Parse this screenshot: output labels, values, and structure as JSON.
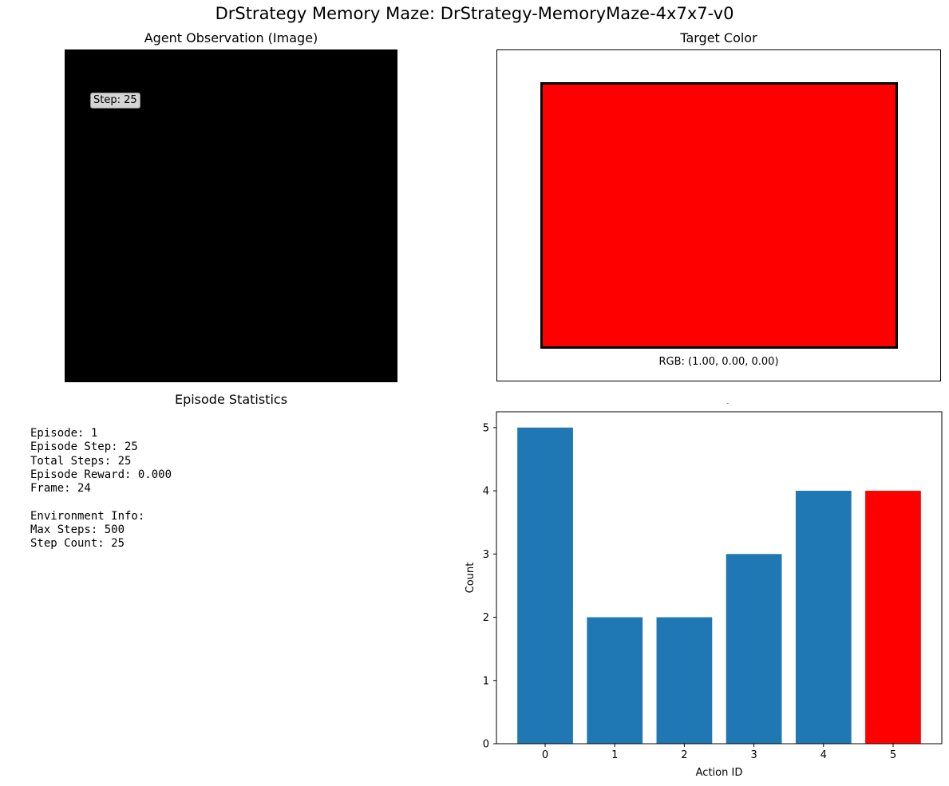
{
  "figure": {
    "suptitle": "DrStrategy Memory Maze: DrStrategy-MemoryMaze-4x7x7-v0"
  },
  "observation": {
    "title": "Agent Observation (Image)",
    "step_label": "Step: 25",
    "background_color": "#000000"
  },
  "target": {
    "title": "Target Color",
    "rgb_label": "RGB: (1.00, 0.00, 0.00)",
    "color": "#ff0000"
  },
  "stats": {
    "title": "Episode Statistics",
    "lines": [
      "Episode: 1",
      "Episode Step: 25",
      "Total Steps: 25",
      "Episode Reward: 0.000",
      "Frame: 24",
      "",
      "Environment Info:",
      "Max Steps: 500",
      "Step Count: 25"
    ]
  },
  "chart_data": {
    "type": "bar",
    "title": "Action History (Last 20)",
    "xlabel": "Action ID",
    "ylabel": "Count",
    "categories": [
      "0",
      "1",
      "2",
      "3",
      "4",
      "5"
    ],
    "values": [
      5,
      2,
      2,
      3,
      4,
      4
    ],
    "colors": [
      "#1f77b4",
      "#1f77b4",
      "#1f77b4",
      "#1f77b4",
      "#1f77b4",
      "#ff0000"
    ],
    "highlighted_category": "5",
    "yticks": [
      0,
      1,
      2,
      3,
      4,
      5
    ],
    "ylim": [
      0,
      5.25
    ],
    "grid": false
  }
}
